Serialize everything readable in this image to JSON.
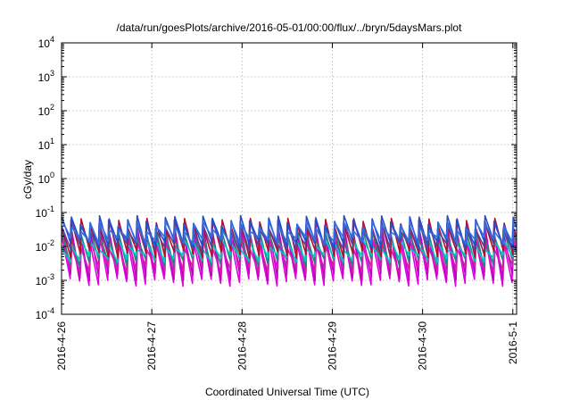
{
  "chart_data": {
    "type": "line",
    "title": "/data/run/goesPlots/archive/2016-05-01/00:00/flux/../bryn/5daysMars.plot",
    "xlabel": "Coordinated Universal Time (UTC)",
    "ylabel": "cGy/day",
    "y_scale": "log",
    "ylim": [
      0.0001,
      10000
    ],
    "xlim": [
      "2016-04-26T00:00",
      "2016-05-01T01:00"
    ],
    "x_ticks": [
      "2016-4-26",
      "2016-4-27",
      "2016-4-28",
      "2016-4-29",
      "2016-4-30",
      "2016-5-1"
    ],
    "y_ticks": [
      {
        "base": "10",
        "exp": "-4",
        "value": 0.0001
      },
      {
        "base": "10",
        "exp": "-3",
        "value": 0.001
      },
      {
        "base": "10",
        "exp": "-2",
        "value": 0.01
      },
      {
        "base": "10",
        "exp": "-1",
        "value": 0.1
      },
      {
        "base": "10",
        "exp": "0",
        "value": 1
      },
      {
        "base": "10",
        "exp": "1",
        "value": 10
      },
      {
        "base": "10",
        "exp": "2",
        "value": 100
      },
      {
        "base": "10",
        "exp": "3",
        "value": 1000
      },
      {
        "base": "10",
        "exp": "4",
        "value": 10000
      }
    ],
    "grid": true,
    "legend": "none",
    "sawtooth_period_hours": 2.5,
    "series": [
      {
        "color": "#e000e0",
        "peak": 0.022,
        "trough": 0.0009
      },
      {
        "color": "#c000c0",
        "peak": 0.03,
        "trough": 0.0013
      },
      {
        "color": "#d020b0",
        "peak": 0.012,
        "trough": 0.002
      },
      {
        "color": "#208880",
        "peak": 0.026,
        "trough": 0.0035
      },
      {
        "color": "#00c8c8",
        "peak": 0.012,
        "trough": 0.0045
      },
      {
        "color": "#b01030",
        "peak": 0.05,
        "trough": 0.006
      },
      {
        "color": "#6040a0",
        "peak": 0.045,
        "trough": 0.01
      },
      {
        "color": "#2050d0",
        "peak": 0.06,
        "trough": 0.012
      },
      {
        "color": "#3070e0",
        "peak": 0.04,
        "trough": 0.015
      }
    ]
  }
}
